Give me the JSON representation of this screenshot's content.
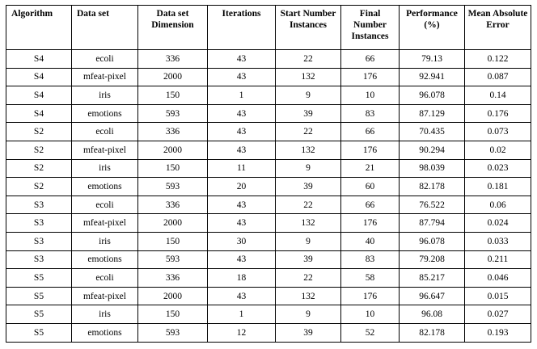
{
  "table": {
    "headers": [
      "Algorithm",
      "Data set",
      "Data set Dimension",
      "Iterations",
      "Start Number Instances",
      "Final Number Instances",
      "Performance (%)",
      "Mean Absolute Error"
    ],
    "rows": [
      [
        "S4",
        "ecoli",
        "336",
        "43",
        "22",
        "66",
        "79.13",
        "0.122"
      ],
      [
        "S4",
        "mfeat-pixel",
        "2000",
        "43",
        "132",
        "176",
        "92.941",
        "0.087"
      ],
      [
        "S4",
        "iris",
        "150",
        "1",
        "9",
        "10",
        "96.078",
        "0.14"
      ],
      [
        "S4",
        "emotions",
        "593",
        "43",
        "39",
        "83",
        "87.129",
        "0.176"
      ],
      [
        "S2",
        "ecoli",
        "336",
        "43",
        "22",
        "66",
        "70.435",
        "0.073"
      ],
      [
        "S2",
        "mfeat-pixel",
        "2000",
        "43",
        "132",
        "176",
        "90.294",
        "0.02"
      ],
      [
        "S2",
        "iris",
        "150",
        "11",
        "9",
        "21",
        "98.039",
        "0.023"
      ],
      [
        "S2",
        "emotions",
        "593",
        "20",
        "39",
        "60",
        "82.178",
        "0.181"
      ],
      [
        "S3",
        "ecoli",
        "336",
        "43",
        "22",
        "66",
        "76.522",
        "0.06"
      ],
      [
        "S3",
        "mfeat-pixel",
        "2000",
        "43",
        "132",
        "176",
        "87.794",
        "0.024"
      ],
      [
        "S3",
        "iris",
        "150",
        "30",
        "9",
        "40",
        "96.078",
        "0.033"
      ],
      [
        "S3",
        "emotions",
        "593",
        "43",
        "39",
        "83",
        "79.208",
        "0.211"
      ],
      [
        "S5",
        "ecoli",
        "336",
        "18",
        "22",
        "58",
        "85.217",
        "0.046"
      ],
      [
        "S5",
        "mfeat-pixel",
        "2000",
        "43",
        "132",
        "176",
        "96.647",
        "0.015"
      ],
      [
        "S5",
        "iris",
        "150",
        "1",
        "9",
        "10",
        "96.08",
        "0.027"
      ],
      [
        "S5",
        "emotions",
        "593",
        "12",
        "39",
        "52",
        "82.178",
        "0.193"
      ]
    ]
  }
}
